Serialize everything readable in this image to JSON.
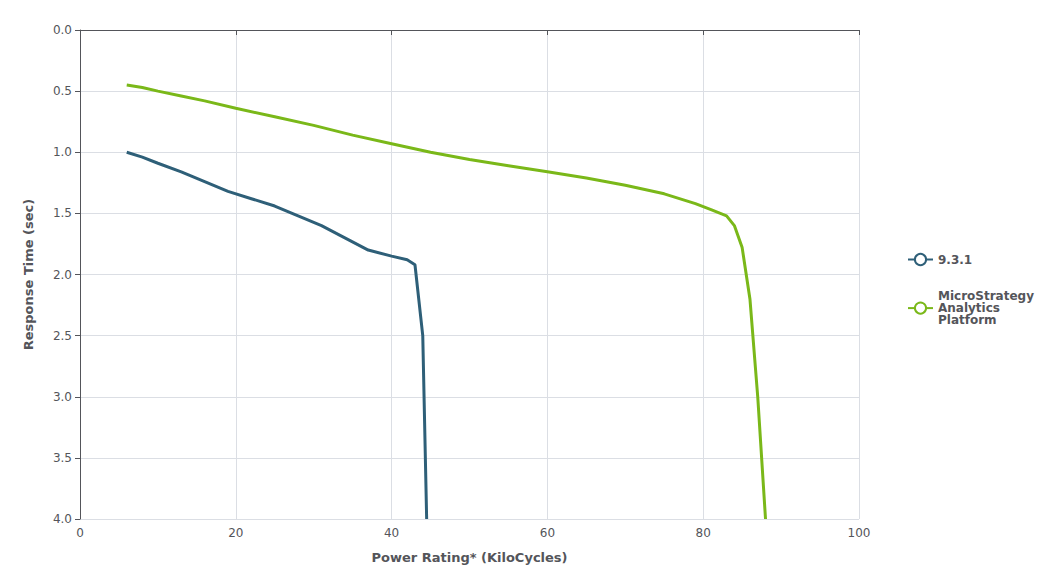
{
  "chart_data": {
    "type": "line",
    "xlabel": "Power Rating* (KiloCycles)",
    "ylabel": "Response Time (sec)",
    "xlim": [
      0,
      100
    ],
    "ylim": [
      4.0,
      0.0
    ],
    "xticks": [
      0,
      20,
      40,
      60,
      80,
      100
    ],
    "yticks": [
      {
        "value": 0.0,
        "label": "0.0"
      },
      0.5,
      {
        "value": 1.0,
        "label": "1.0"
      },
      1.5,
      {
        "value": 2.0,
        "label": "2.0"
      },
      2.5,
      {
        "value": 3.0,
        "label": "3.0"
      },
      3.5,
      {
        "value": 4.0,
        "label": "4.0"
      }
    ],
    "grid": true,
    "legend": "right",
    "series": [
      {
        "name": "9.3.1",
        "color": "#2e5f78",
        "x": [
          6,
          8,
          10,
          13,
          16,
          19,
          22,
          25,
          28,
          31,
          34,
          37,
          40,
          42,
          43,
          44,
          44.5
        ],
        "values": [
          1.0,
          1.04,
          1.09,
          1.16,
          1.24,
          1.32,
          1.38,
          1.44,
          1.52,
          1.6,
          1.7,
          1.8,
          1.85,
          1.88,
          1.92,
          2.5,
          4.0
        ]
      },
      {
        "name": "MicroStrategy\nAnalytics\nPlatform",
        "color": "#7ab819",
        "x": [
          6,
          8,
          10,
          13,
          16,
          20,
          25,
          30,
          35,
          40,
          45,
          50,
          55,
          60,
          65,
          70,
          75,
          79,
          81,
          83,
          84,
          85,
          86,
          87,
          88
        ],
        "values": [
          0.45,
          0.47,
          0.5,
          0.54,
          0.58,
          0.64,
          0.71,
          0.78,
          0.86,
          0.93,
          1.0,
          1.06,
          1.11,
          1.16,
          1.21,
          1.27,
          1.34,
          1.42,
          1.47,
          1.52,
          1.6,
          1.78,
          2.2,
          3.0,
          4.0
        ]
      }
    ]
  }
}
